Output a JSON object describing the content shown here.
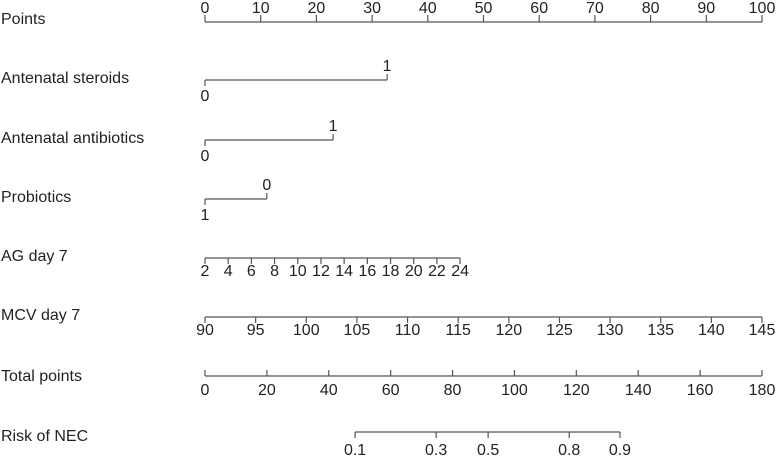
{
  "chart_data": {
    "type": "nomogram",
    "points_axis": {
      "name": "Points",
      "lim": [
        0,
        100
      ],
      "ticks": [
        0,
        10,
        20,
        30,
        40,
        50,
        60,
        70,
        80,
        90,
        100
      ]
    },
    "variables": [
      {
        "name": "Antenatal steroids",
        "categories": [
          "0",
          "1"
        ],
        "points": [
          0,
          32.7
        ],
        "label_sides": [
          "below",
          "above"
        ]
      },
      {
        "name": "Antenatal antibiotics",
        "categories": [
          "0",
          "1"
        ],
        "points": [
          0,
          23
        ],
        "label_sides": [
          "below",
          "above"
        ]
      },
      {
        "name": "Probiotics",
        "categories": [
          "1",
          "0"
        ],
        "points": [
          0,
          11.1
        ],
        "label_sides": [
          "below",
          "above"
        ]
      },
      {
        "name": "AG day 7",
        "lim": [
          2,
          24
        ],
        "points_lim": [
          0,
          45.8
        ],
        "ticks": [
          2,
          4,
          6,
          8,
          10,
          12,
          14,
          16,
          18,
          20,
          22,
          24
        ]
      },
      {
        "name": "MCV day 7",
        "lim": [
          90,
          145
        ],
        "points_lim": [
          0,
          100
        ],
        "ticks": [
          90,
          95,
          100,
          105,
          110,
          115,
          120,
          125,
          130,
          135,
          140,
          145
        ]
      }
    ],
    "total_axis": {
      "name": "Total points",
      "lim": [
        0,
        180
      ],
      "ticks": [
        0,
        20,
        40,
        60,
        80,
        100,
        120,
        140,
        160,
        180
      ]
    },
    "risk_axis": {
      "name": "Risk of NEC",
      "ticks": [
        0.1,
        0.3,
        0.5,
        0.8,
        0.9
      ],
      "total_points": [
        48.5,
        74.7,
        91.5,
        117.7,
        134.1
      ]
    },
    "color": "#555555"
  }
}
